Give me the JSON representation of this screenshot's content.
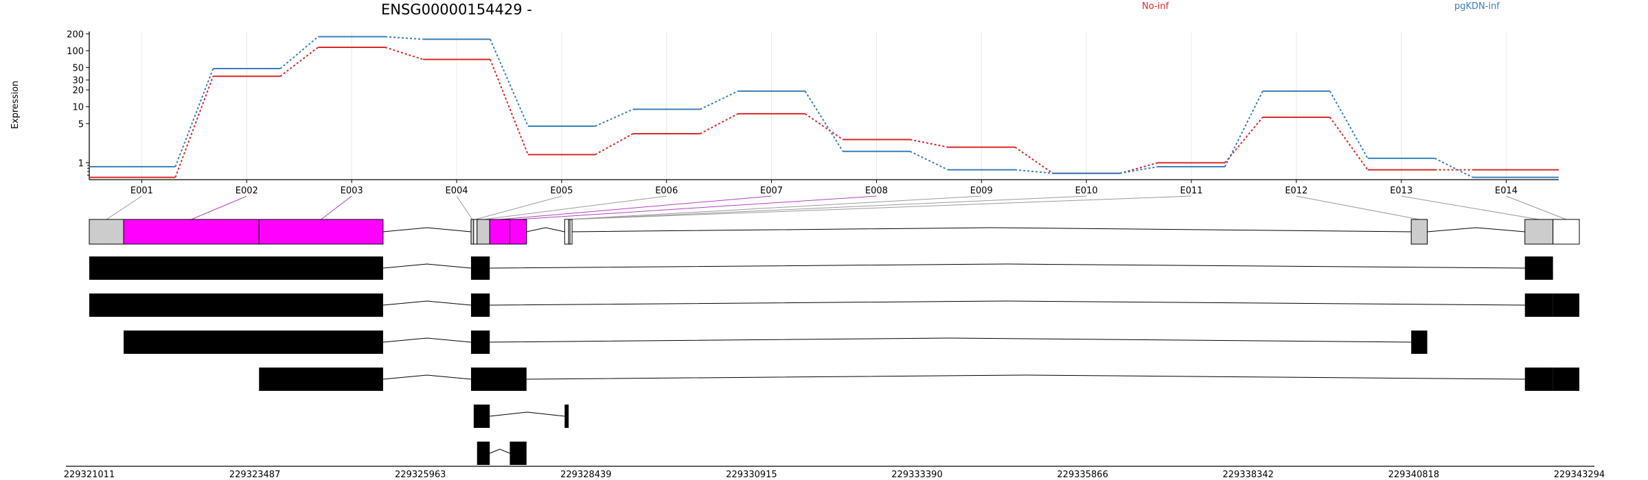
{
  "chart_data": {
    "type": "line",
    "title": "ENSG00000154429 -",
    "ylabel": "Expression",
    "yscale": "log",
    "ylim": [
      0.5,
      220
    ],
    "yticks": [
      "1",
      "5",
      "10",
      "20",
      "30",
      "50",
      "100",
      "200"
    ],
    "ytick_values": [
      1,
      5,
      10,
      20,
      30,
      50,
      100,
      200
    ],
    "categories": [
      "E001",
      "E002",
      "E003",
      "E004",
      "E005",
      "E006",
      "E007",
      "E008",
      "E009",
      "E010",
      "E011",
      "E012",
      "E013",
      "E014"
    ],
    "series": [
      {
        "name": "No-inf",
        "color": "#d62728",
        "values": [
          0.55,
          35,
          115,
          70,
          1.4,
          3.3,
          7.5,
          2.6,
          1.9,
          0.65,
          1.0,
          6.5,
          0.75,
          0.75
        ]
      },
      {
        "name": "pgKDN-inf",
        "color": "#377eb8",
        "values": [
          0.85,
          48,
          178,
          160,
          4.5,
          9.0,
          19,
          1.6,
          0.75,
          0.65,
          0.85,
          19,
          1.2,
          0.55
        ]
      }
    ],
    "genomic_axis": {
      "ticks": [
        "229321011",
        "229323487",
        "229325963",
        "229328439",
        "229330915",
        "229333390",
        "229335866",
        "229338342",
        "229340818",
        "229343294"
      ],
      "tick_values": [
        229321011,
        229323487,
        229325963,
        229328439,
        229330915,
        229333390,
        229335866,
        229338342,
        229340818,
        229343294
      ]
    },
    "exons": [
      {
        "id": "E001",
        "start": 229321011,
        "end": 229321525,
        "fill": "#cccccc"
      },
      {
        "id": "E002",
        "start": 229321525,
        "end": 229323550,
        "fill": "#ff00ff"
      },
      {
        "id": "E003",
        "start": 229323550,
        "end": 229325405,
        "fill": "#ff00ff"
      },
      {
        "id": "E004",
        "start": 229326720,
        "end": 229326760,
        "fill": "#cccccc"
      },
      {
        "id": "E005",
        "start": 229326760,
        "end": 229326810,
        "fill": "#ffffff"
      },
      {
        "id": "E006",
        "start": 229326810,
        "end": 229327000,
        "fill": "#cccccc"
      },
      {
        "id": "E007",
        "start": 229327000,
        "end": 229327300,
        "fill": "#ff00ff"
      },
      {
        "id": "E008",
        "start": 229327300,
        "end": 229327550,
        "fill": "#ff00ff"
      },
      {
        "id": "E009",
        "start": 229328120,
        "end": 229328180,
        "fill": "#ffffff"
      },
      {
        "id": "E010",
        "start": 229328180,
        "end": 229328200,
        "fill": "#ffffff"
      },
      {
        "id": "E011",
        "start": 229328200,
        "end": 229328210,
        "fill": "#ffffff"
      },
      {
        "id": "E012",
        "start": 229340780,
        "end": 229341020,
        "fill": "#cccccc"
      },
      {
        "id": "E013",
        "start": 229342480,
        "end": 229342900,
        "fill": "#cccccc"
      },
      {
        "id": "E014",
        "start": 229342900,
        "end": 229343294,
        "fill": "#ffffff"
      }
    ],
    "transcripts": [
      {
        "blocks": [
          [
            229321011,
            229325405
          ],
          [
            229326720,
            229327000
          ],
          [
            229342480,
            229342900
          ]
        ]
      },
      {
        "blocks": [
          [
            229321011,
            229325405
          ],
          [
            229326720,
            229327000
          ],
          [
            229342480,
            229342900
          ],
          [
            229342900,
            229343294
          ]
        ]
      },
      {
        "blocks": [
          [
            229321525,
            229325405
          ],
          [
            229326720,
            229327000
          ],
          [
            229340780,
            229341020
          ]
        ]
      },
      {
        "blocks": [
          [
            229323550,
            229325405
          ],
          [
            229326720,
            229327550
          ],
          [
            229342480,
            229342900
          ],
          [
            229342900,
            229343294
          ]
        ]
      },
      {
        "blocks": [
          [
            229326760,
            229327000
          ],
          [
            229328120,
            229328180
          ]
        ]
      },
      {
        "blocks": [
          [
            229326810,
            229327000
          ],
          [
            229327300,
            229327550
          ]
        ]
      }
    ]
  }
}
